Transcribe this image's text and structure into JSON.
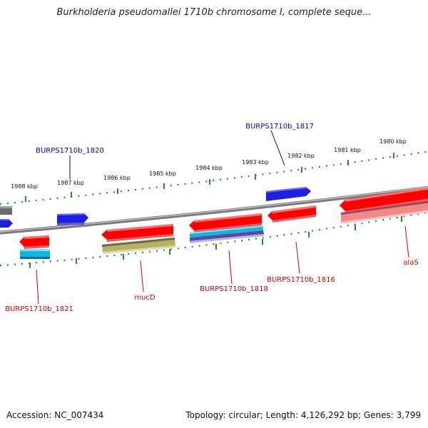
{
  "title": "Burkholderia pseudomallei 1710b chromosome I, complete seque...",
  "footer": {
    "accession": "Accession: NC_007434",
    "stats": "Topology: circular; Length: 4,126,292 bp; Genes: 3,799"
  },
  "colors": {
    "backbone": "#7a7a7a",
    "tick": "#2a8a2a",
    "forward_gene": "#ff0000",
    "reverse_gene_blue": "#1f1fe0",
    "cyan_feature": "#14b4e0",
    "olive_feature": "#b5b06a",
    "pink_feature": "#f08a8a",
    "label_blue": "#0000cc",
    "label_red": "#cc0000"
  },
  "scale_labels": [
    "1988 kbp",
    "1987 kbp",
    "1986 kbp",
    "1985 kbp",
    "1984 kbp",
    "1983 kbp",
    "1982 kbp",
    "1981 kbp",
    "1980 kbp"
  ],
  "gene_labels": [
    {
      "id": "BURPS1710b_1820",
      "color": "blue"
    },
    {
      "id": "BURPS1710b_1817",
      "color": "blue"
    },
    {
      "id": "BURPS1710b_1821",
      "color": "red"
    },
    {
      "id": "mucD",
      "color": "red"
    },
    {
      "id": "BURPS1710b_1818",
      "color": "red"
    },
    {
      "id": "BURPS1710b_1816",
      "color": "red"
    },
    {
      "id": "alaS",
      "color": "red"
    }
  ]
}
